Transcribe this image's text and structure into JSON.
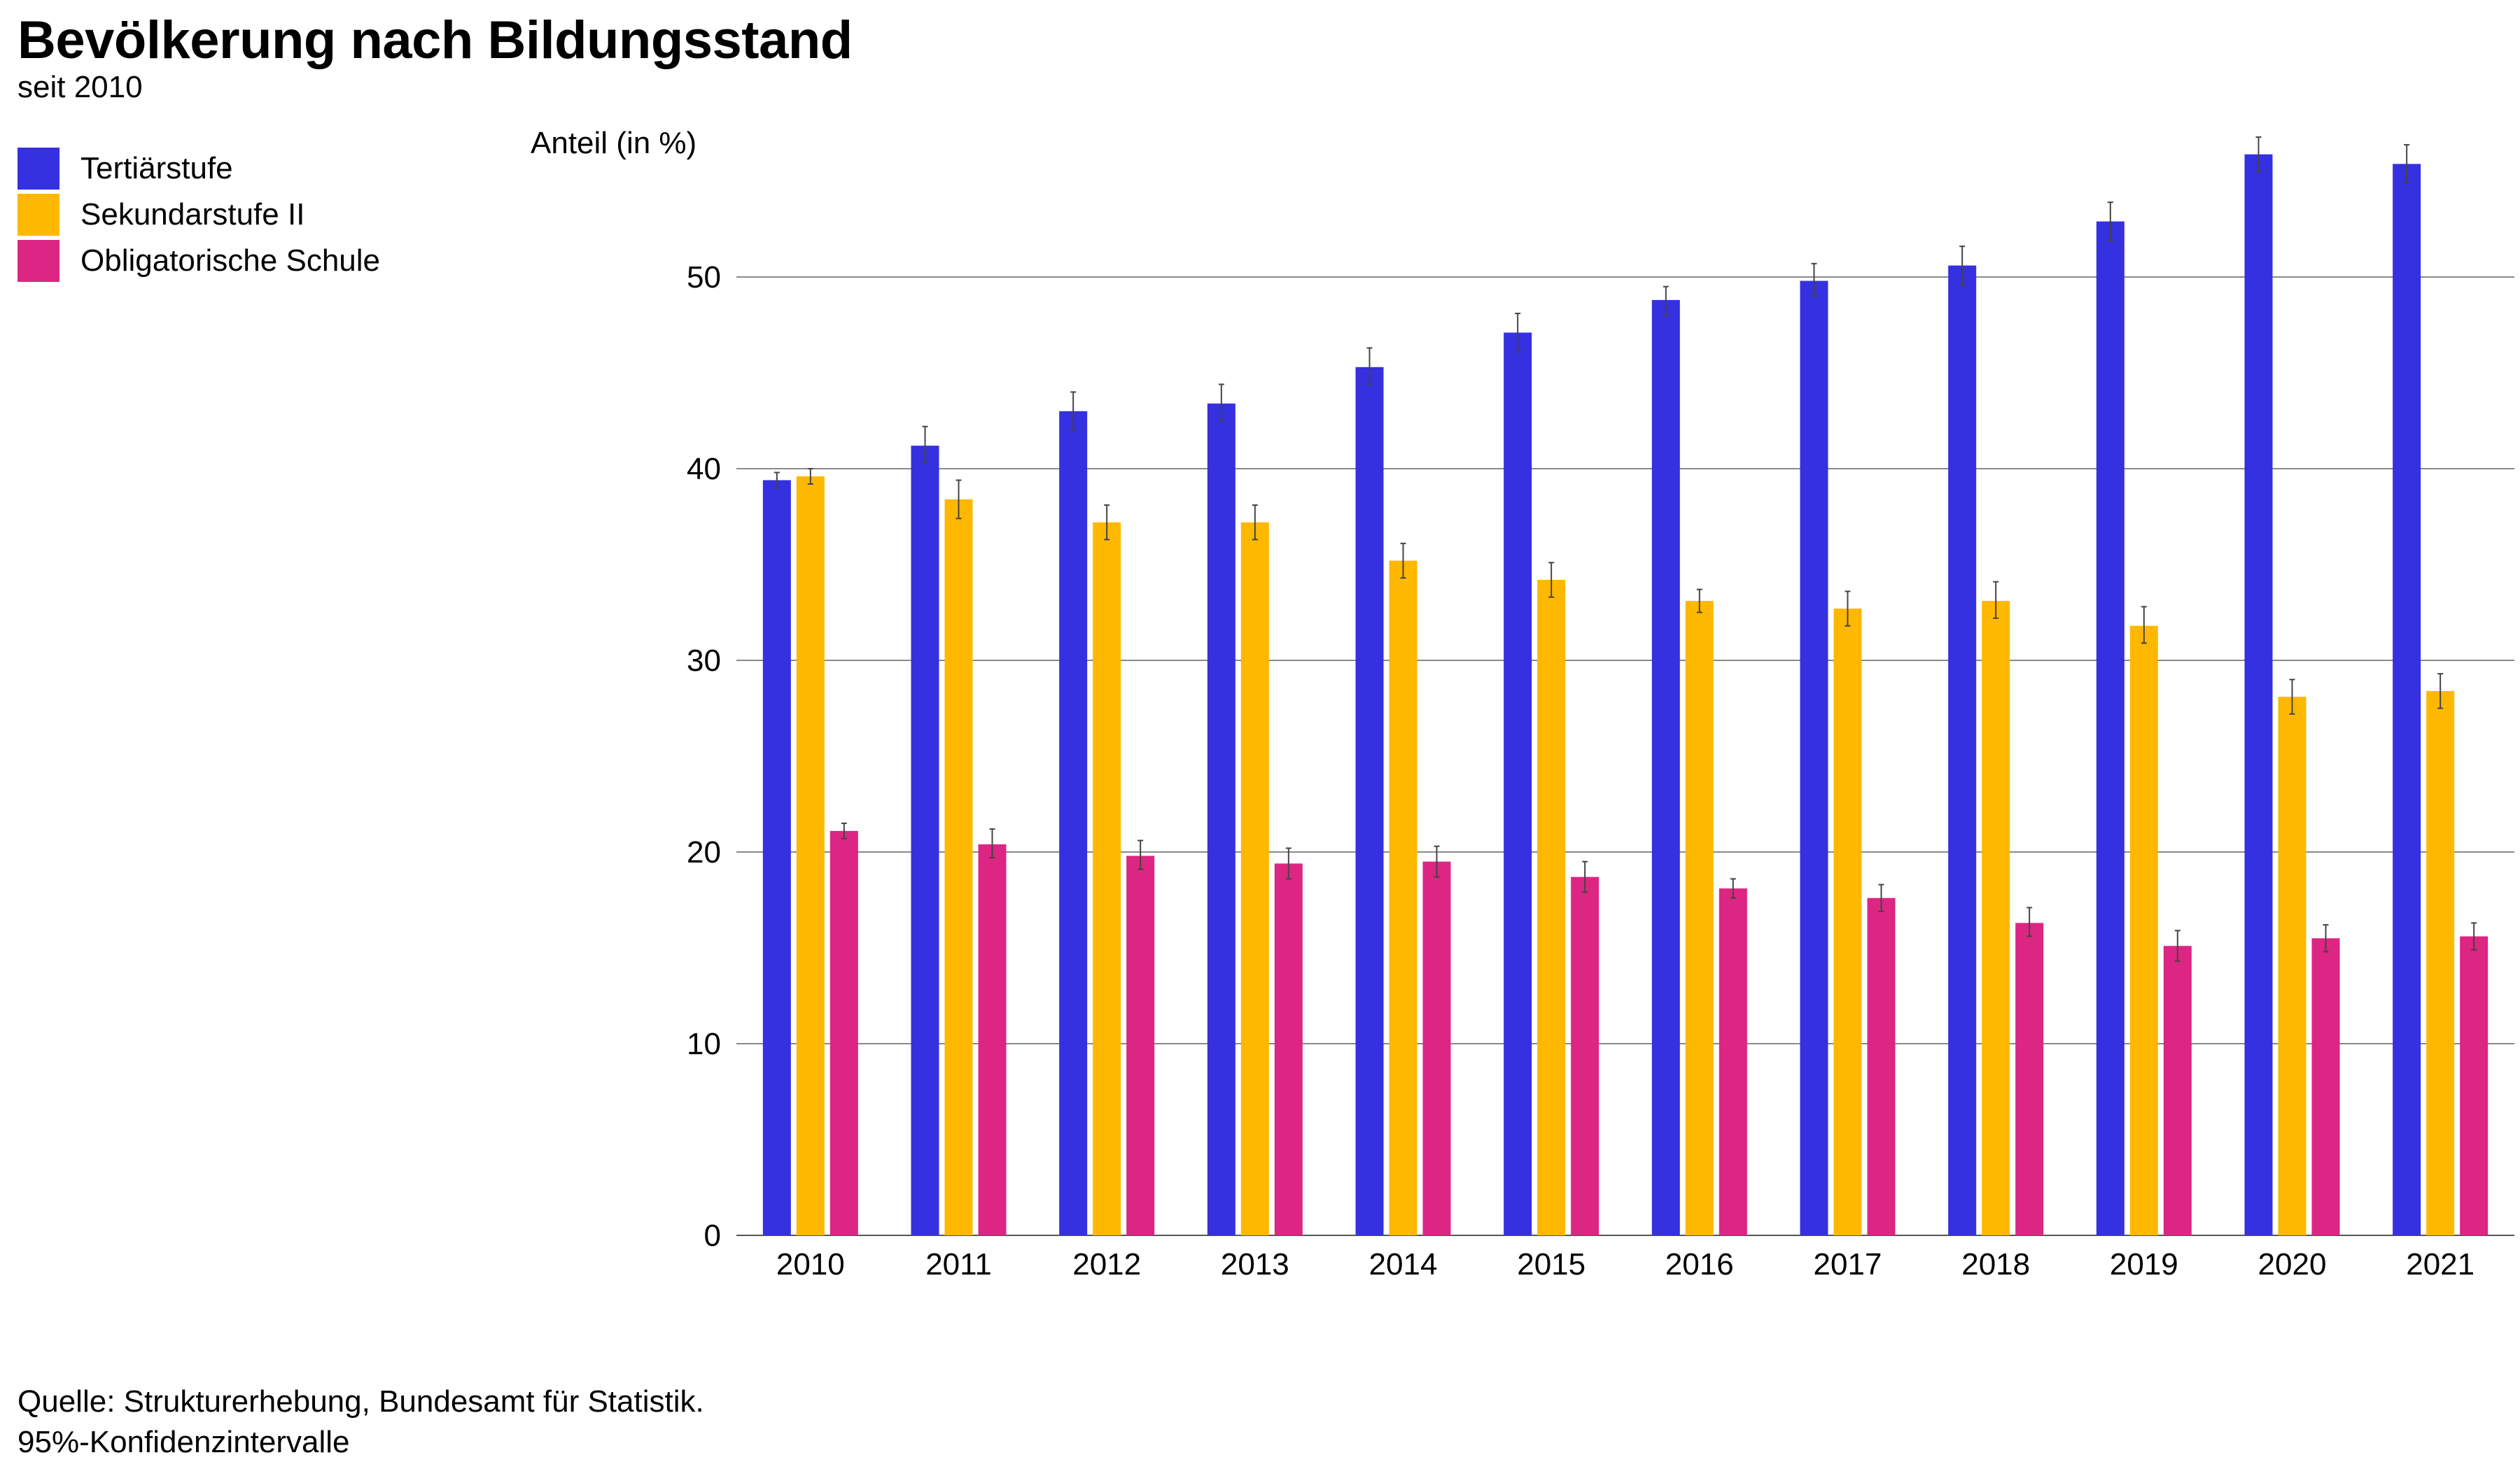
{
  "chart_data": {
    "type": "bar",
    "title": "Bevölkerung nach Bildungsstand",
    "subtitle": "seit 2010",
    "ylabel": "Anteil (in %)",
    "xlabel": "",
    "ylim": [
      0,
      57
    ],
    "yticks": [
      0,
      10,
      20,
      30,
      40,
      50
    ],
    "grid": true,
    "legend_position": "top-left",
    "categories": [
      "2010",
      "2011",
      "2012",
      "2013",
      "2014",
      "2015",
      "2016",
      "2017",
      "2018",
      "2019",
      "2020",
      "2021"
    ],
    "series": [
      {
        "name": "Tertiärstufe",
        "color": "#3530E0",
        "values": [
          39.4,
          41.2,
          43.0,
          43.4,
          45.3,
          47.1,
          48.8,
          49.8,
          50.6,
          52.9,
          56.4,
          55.9
        ],
        "ci": [
          [
            39.0,
            39.8
          ],
          [
            40.3,
            42.2
          ],
          [
            42.0,
            44.0
          ],
          [
            42.5,
            44.4
          ],
          [
            44.4,
            46.3
          ],
          [
            46.1,
            48.1
          ],
          [
            48.0,
            49.5
          ],
          [
            49.0,
            50.7
          ],
          [
            49.6,
            51.6
          ],
          [
            51.9,
            53.9
          ],
          [
            55.5,
            57.3
          ],
          [
            54.9,
            56.9
          ]
        ]
      },
      {
        "name": "Sekundarstufe II",
        "color": "#FFB800",
        "values": [
          39.6,
          38.4,
          37.2,
          37.2,
          35.2,
          34.2,
          33.1,
          32.7,
          33.1,
          31.8,
          28.1,
          28.4
        ],
        "ci": [
          [
            39.2,
            40.0
          ],
          [
            37.4,
            39.4
          ],
          [
            36.3,
            38.1
          ],
          [
            36.3,
            38.1
          ],
          [
            34.3,
            36.1
          ],
          [
            33.3,
            35.1
          ],
          [
            32.5,
            33.7
          ],
          [
            31.8,
            33.6
          ],
          [
            32.2,
            34.1
          ],
          [
            30.9,
            32.8
          ],
          [
            27.2,
            29.0
          ],
          [
            27.5,
            29.3
          ]
        ]
      },
      {
        "name": "Obligatorische Schule",
        "color": "#DD2583",
        "values": [
          21.1,
          20.4,
          19.8,
          19.4,
          19.5,
          18.7,
          18.1,
          17.6,
          16.3,
          15.1,
          15.5,
          15.6
        ],
        "ci": [
          [
            20.7,
            21.5
          ],
          [
            19.7,
            21.2
          ],
          [
            19.1,
            20.6
          ],
          [
            18.6,
            20.2
          ],
          [
            18.7,
            20.3
          ],
          [
            17.9,
            19.5
          ],
          [
            17.6,
            18.6
          ],
          [
            16.9,
            18.3
          ],
          [
            15.6,
            17.1
          ],
          [
            14.3,
            15.9
          ],
          [
            14.8,
            16.2
          ],
          [
            14.9,
            16.3
          ]
        ]
      }
    ],
    "source": [
      "Quelle: Strukturerhebung, Bundesamt für Statistik.",
      "95%-Konfidenzintervalle"
    ]
  }
}
